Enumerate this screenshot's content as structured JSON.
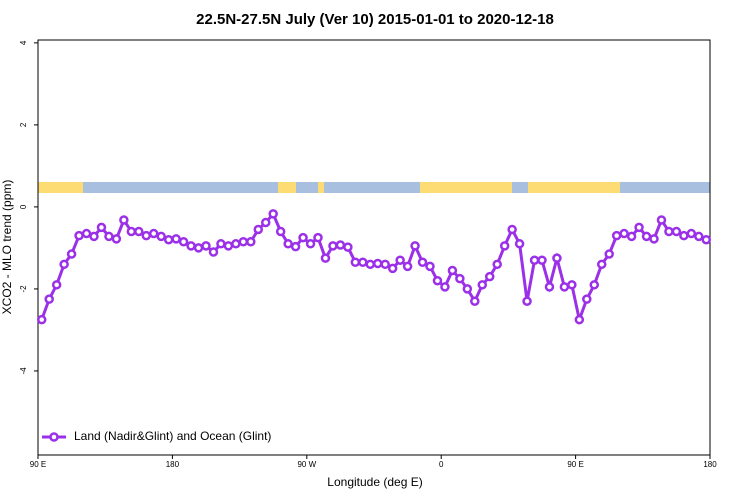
{
  "chart_data": {
    "type": "line",
    "title": "22.5N-27.5N July (Ver 10)   2015-01-01 to 2020-12-18",
    "x_label": "Longitude (deg E)",
    "y_label": "XCO2 - MLO trend (ppm)",
    "x": [
      92.5,
      97.5,
      102.5,
      107.5,
      112.5,
      117.5,
      122.5,
      127.5,
      132.5,
      137.5,
      142.5,
      147.5,
      152.5,
      157.5,
      162.5,
      167.5,
      172.5,
      177.5,
      182.5,
      187.5,
      192.5,
      197.5,
      202.5,
      207.5,
      212.5,
      217.5,
      222.5,
      227.5,
      232.5,
      237.5,
      242.5,
      247.5,
      252.5,
      257.5,
      262.5,
      267.5,
      272.5,
      277.5,
      282.5,
      287.5,
      292.5,
      297.5,
      302.5,
      307.5,
      312.5,
      317.5,
      322.5,
      327.5,
      332.5,
      337.5,
      342.5,
      347.5,
      352.5,
      357.5,
      362.5,
      367.5,
      372.5,
      377.5,
      382.5,
      387.5,
      392.5,
      397.5,
      402.5,
      407.5,
      412.5,
      417.5,
      422.5,
      427.5,
      432.5,
      437.5,
      442.5,
      447.5,
      452.5,
      457.5,
      462.5,
      467.5,
      472.5,
      477.5,
      482.5,
      487.5,
      492.5,
      497.5,
      502.5,
      507.5,
      512.5,
      517.5,
      522.5,
      527.5,
      532.5,
      537.5
    ],
    "series": [
      {
        "name": "Land (Nadir&Glint) and Ocean (Glint)",
        "color": "#9b30e8",
        "values": [
          -2.75,
          -2.25,
          -1.9,
          -1.4,
          -1.15,
          -0.7,
          -0.65,
          -0.72,
          -0.5,
          -0.72,
          -0.78,
          -0.32,
          -0.6,
          -0.6,
          -0.7,
          -0.65,
          -0.72,
          -0.8,
          -0.78,
          -0.85,
          -0.95,
          -1.0,
          -0.95,
          -1.1,
          -0.9,
          -0.95,
          -0.9,
          -0.85,
          -0.85,
          -0.55,
          -0.38,
          -0.17,
          -0.6,
          -0.9,
          -0.97,
          -0.75,
          -0.9,
          -0.75,
          -1.25,
          -0.95,
          -0.93,
          -0.98,
          -1.35,
          -1.35,
          -1.4,
          -1.38,
          -1.4,
          -1.5,
          -1.3,
          -1.45,
          -0.95,
          -1.35,
          -1.45,
          -1.8,
          -1.95,
          -1.55,
          -1.75,
          -2.0,
          -2.3,
          -1.9,
          -1.7,
          -1.4,
          -0.95,
          -0.55,
          -0.9,
          -2.3,
          -1.3,
          -1.3,
          -1.95,
          -1.25,
          -1.95,
          -1.9,
          -2.75,
          -2.25,
          -1.9,
          -1.4,
          -1.15,
          -0.7,
          -0.65,
          -0.72,
          -0.5,
          -0.72,
          -0.78,
          -0.32,
          -0.6,
          -0.6,
          -0.7,
          -0.65,
          -0.72,
          -0.8
        ]
      }
    ],
    "xlim": [
      90,
      540
    ],
    "xticks": [
      {
        "value": 90,
        "label": "90 E"
      },
      {
        "value": 180,
        "label": "180"
      },
      {
        "value": 270,
        "label": "90 W"
      },
      {
        "value": 360,
        "label": "0"
      },
      {
        "value": 450,
        "label": "90 E"
      },
      {
        "value": 540,
        "label": "180"
      }
    ],
    "ylim": [
      -6.05,
      4.07
    ],
    "yticks": [
      -4,
      -2,
      0,
      2,
      4
    ],
    "legend": "bottom-left"
  }
}
